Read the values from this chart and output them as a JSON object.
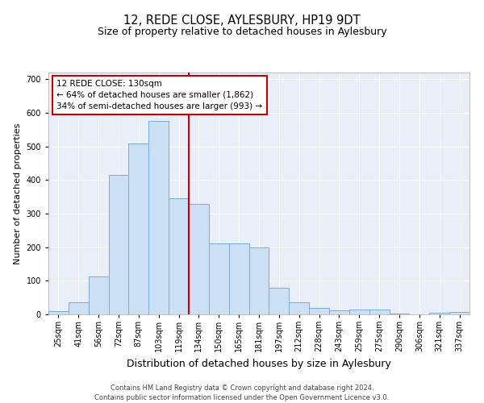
{
  "title": "12, REDE CLOSE, AYLESBURY, HP19 9DT",
  "subtitle": "Size of property relative to detached houses in Aylesbury",
  "xlabel": "Distribution of detached houses by size in Aylesbury",
  "ylabel": "Number of detached properties",
  "categories": [
    "25sqm",
    "41sqm",
    "56sqm",
    "72sqm",
    "87sqm",
    "103sqm",
    "119sqm",
    "134sqm",
    "150sqm",
    "165sqm",
    "181sqm",
    "197sqm",
    "212sqm",
    "228sqm",
    "243sqm",
    "259sqm",
    "275sqm",
    "290sqm",
    "306sqm",
    "321sqm",
    "337sqm"
  ],
  "bar_heights": [
    10,
    35,
    112,
    415,
    510,
    575,
    345,
    330,
    212,
    212,
    200,
    80,
    37,
    20,
    12,
    15,
    15,
    2,
    0,
    5,
    8
  ],
  "bar_color": "#cce0f5",
  "bar_edge_color": "#7aabda",
  "property_line_color": "#cc0000",
  "annotation_text": "12 REDE CLOSE: 130sqm\n← 64% of detached houses are smaller (1,862)\n34% of semi-detached houses are larger (993) →",
  "annotation_box_color": "#ffffff",
  "annotation_box_edge": "#cc0000",
  "footer_line1": "Contains HM Land Registry data © Crown copyright and database right 2024.",
  "footer_line2": "Contains public sector information licensed under the Open Government Licence v3.0.",
  "ylim": [
    0,
    720
  ],
  "yticks": [
    0,
    100,
    200,
    300,
    400,
    500,
    600,
    700
  ],
  "bg_color": "#e8eff8",
  "title_fontsize": 10.5,
  "subtitle_fontsize": 9,
  "ylabel_fontsize": 8,
  "xlabel_fontsize": 9,
  "tick_fontsize": 7,
  "annotation_fontsize": 7.5,
  "footer_fontsize": 6
}
